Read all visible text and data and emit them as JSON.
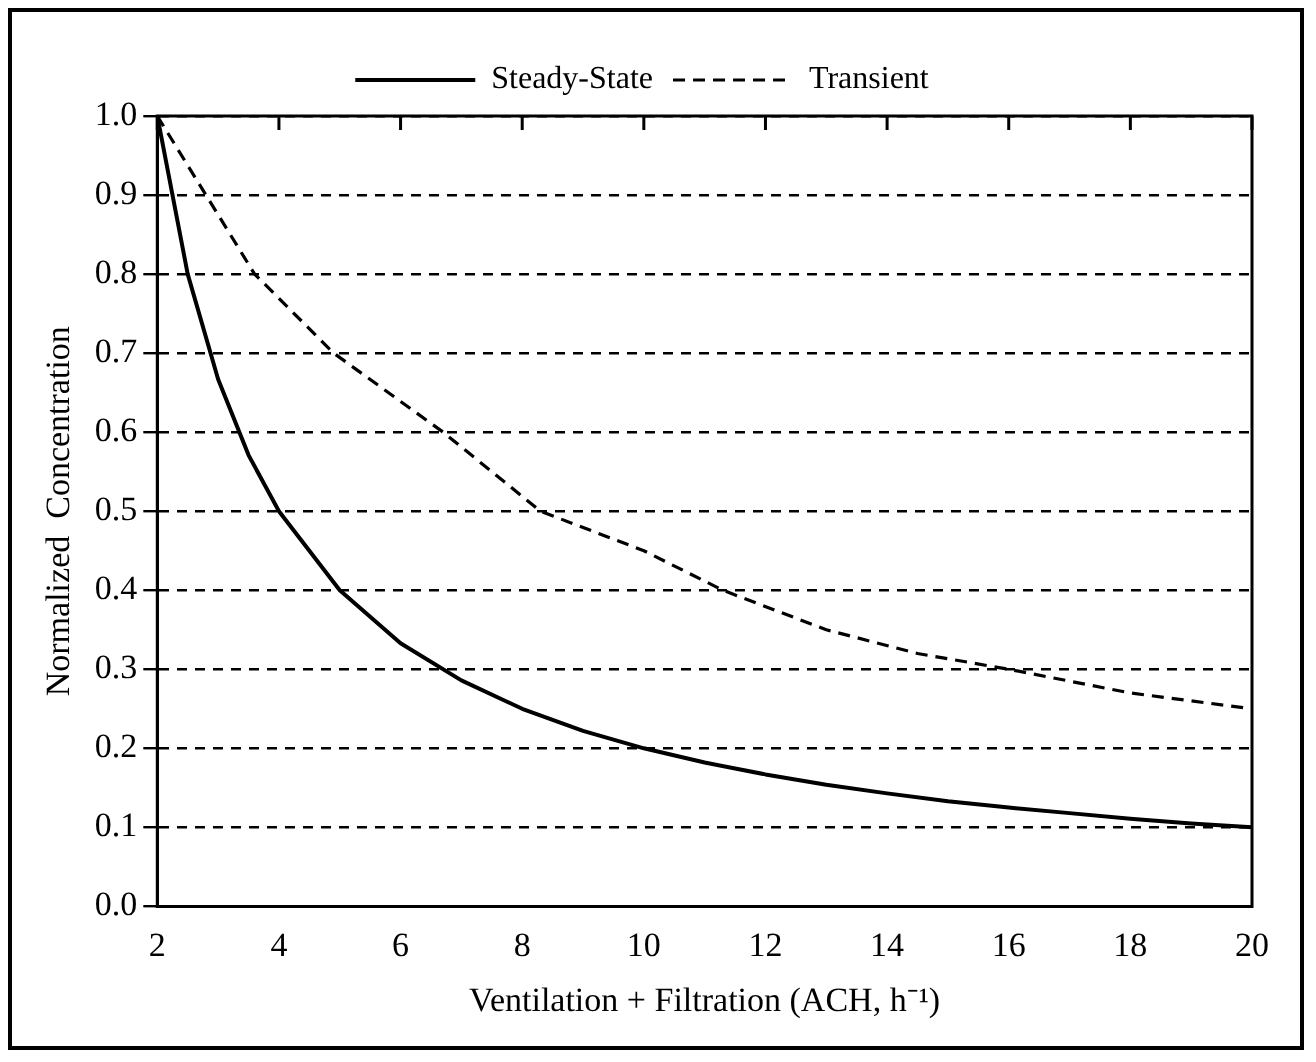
{
  "chart_data": {
    "type": "line",
    "xlabel": "Ventilation + Filtration (ACH, h⁻¹)",
    "ylabel": "Normalized  Concentration",
    "xlim": [
      2,
      20
    ],
    "xticks": [
      2,
      4,
      6,
      8,
      10,
      12,
      14,
      16,
      18,
      20
    ],
    "ylim": [
      0,
      1
    ],
    "yticks": [
      {
        "value": 0,
        "label": "0.0"
      },
      0.1,
      0.2,
      0.3,
      0.4,
      0.5,
      0.6,
      0.7,
      0.8,
      0.9,
      {
        "value": 1,
        "label": "1.0"
      }
    ],
    "grid": "y",
    "legend": "top",
    "marker": "none",
    "series": [
      {
        "name": "Steady-State",
        "color": "#000000",
        "line_style": "solid",
        "x": [
          2,
          2.5,
          3,
          3.5,
          4,
          5,
          6,
          7,
          8,
          9,
          10,
          11,
          12,
          13,
          14,
          15,
          16,
          17,
          18,
          19,
          20
        ],
        "values": [
          1.0,
          0.8,
          0.667,
          0.571,
          0.5,
          0.4,
          0.333,
          0.286,
          0.25,
          0.222,
          0.2,
          0.182,
          0.167,
          0.154,
          0.143,
          0.133,
          0.125,
          0.118,
          0.111,
          0.105,
          0.1
        ]
      },
      {
        "name": "Transient",
        "color": "#000000",
        "line_style": "dashed",
        "x": [
          2,
          2.8,
          3.6,
          4.9,
          6.7,
          8.3,
          10,
          11.3,
          13,
          14.5,
          16,
          18,
          20
        ],
        "values": [
          1.0,
          0.9,
          0.8,
          0.7,
          0.6,
          0.5,
          0.45,
          0.4,
          0.35,
          0.32,
          0.3,
          0.27,
          0.25
        ]
      }
    ]
  }
}
